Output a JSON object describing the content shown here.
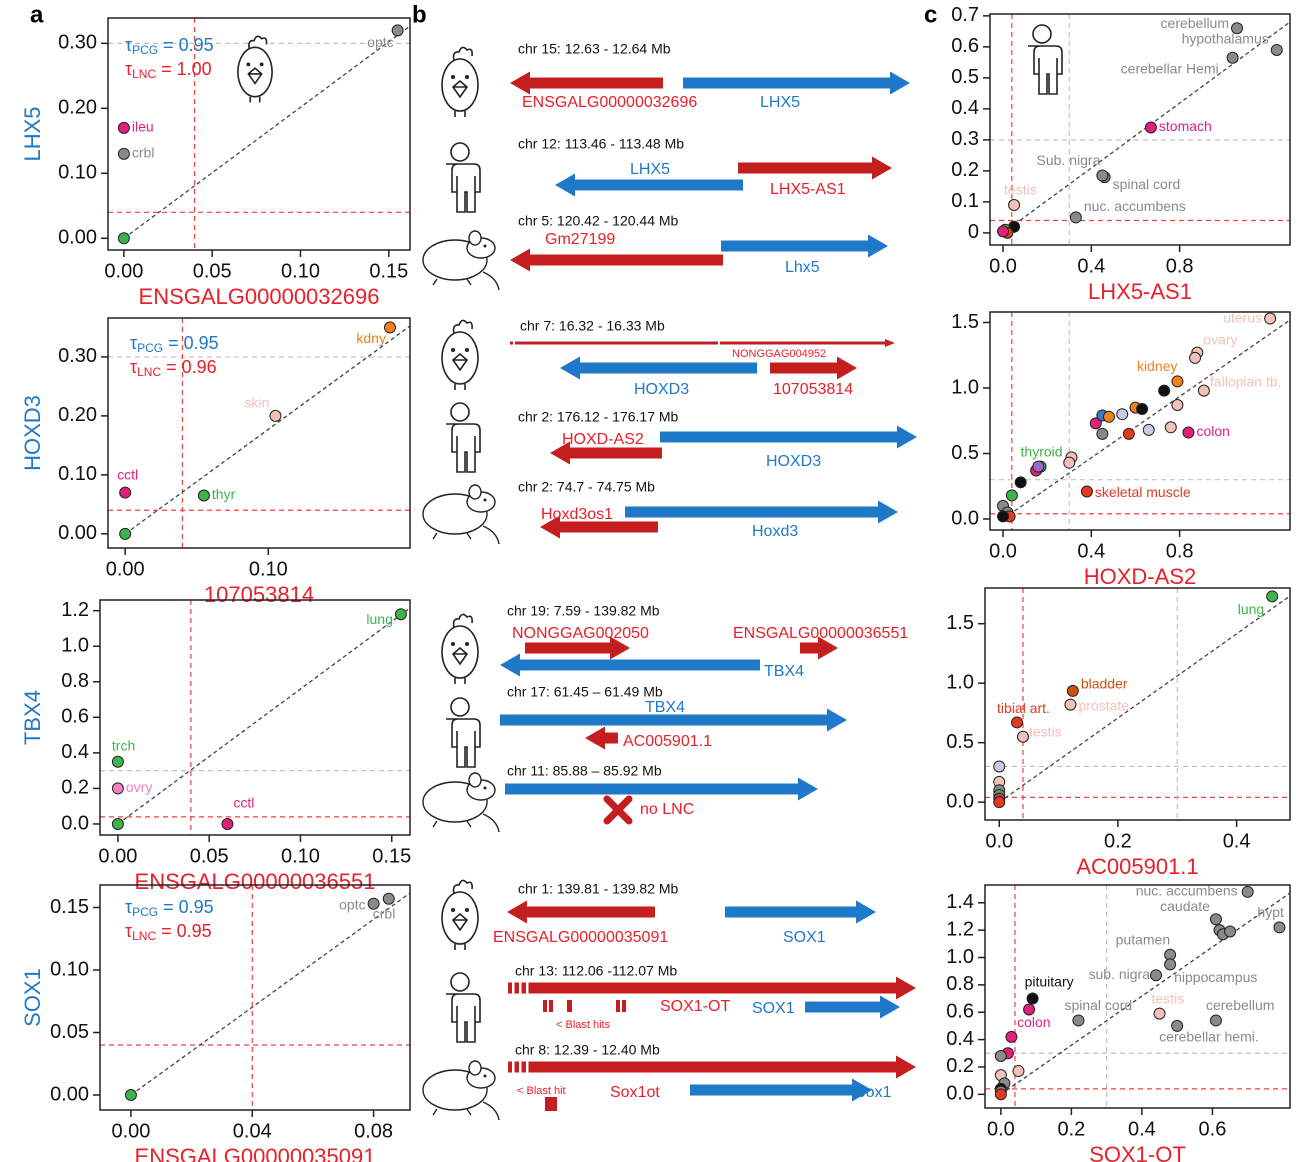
{
  "panel_labels": [
    "a",
    "b",
    "c"
  ],
  "chart_data": [
    {
      "type": "scatter",
      "ylabel": "LHX5",
      "ylabel_color": "#1f78c8",
      "xlabel": "ENSGALG00000032696",
      "xlabel_color": "#e8202a",
      "tau": [
        {
          "symbol": "τ",
          "sub": "PCG",
          "text": " = 0.95",
          "color": "#1f78c8"
        },
        {
          "symbol": "τ",
          "sub": "LNC",
          "text": " = 1.00",
          "color": "#e8202a"
        }
      ],
      "x": [
        0,
        0,
        0,
        0.155
      ],
      "values": [
        0,
        0.17,
        0.13,
        0.32
      ],
      "colors": [
        "#3cb44b",
        "#e0207a",
        "#8a8a8a",
        "#8a8a8a"
      ],
      "point_labels": [
        null,
        "ileu",
        "crbl",
        "optc"
      ],
      "xlim": [
        -0.009,
        0.162
      ],
      "ylim": [
        -0.018,
        0.339
      ],
      "xticks": [
        {
          "value": 0,
          "label": "0.00"
        },
        0.05,
        {
          "value": 0.1,
          "label": "0.10"
        },
        0.15
      ],
      "yticks": [
        {
          "value": 0,
          "label": "0.00"
        },
        {
          "value": 0.1,
          "label": "0.10"
        },
        {
          "value": 0.2,
          "label": "0.20"
        },
        {
          "value": 0.3,
          "label": "0.30"
        }
      ],
      "hlines": [
        {
          "value": 0.04,
          "color": "#f04040"
        },
        {
          "value": 0.3,
          "color": "#c0c0c0"
        }
      ],
      "vlines": [
        {
          "value": 0.04,
          "color": "#f04040"
        }
      ]
    },
    {
      "type": "scatter",
      "ylabel": "HOXD3",
      "ylabel_color": "#1f78c8",
      "xlabel": "107053814",
      "xlabel_color": "#e8202a",
      "tau": [
        {
          "symbol": "τ",
          "sub": "PCG",
          "text": " = 0.95",
          "color": "#1f78c8"
        },
        {
          "symbol": "τ",
          "sub": "LNC",
          "text": " = 0.96",
          "color": "#e8202a"
        }
      ],
      "x": [
        0,
        0,
        0.055,
        0.105,
        0.185
      ],
      "values": [
        0,
        0.07,
        0.065,
        0.2,
        0.35
      ],
      "colors": [
        "#3cb44b",
        "#e0207a",
        "#3cb44b",
        "#f4c0b8",
        "#f08020"
      ],
      "point_labels": [
        null,
        "cctl",
        "thyr",
        "skin",
        "kdny"
      ],
      "xlim": [
        -0.012,
        0.199
      ],
      "ylim": [
        -0.024,
        0.366
      ],
      "xticks": [
        {
          "value": 0,
          "label": "0.00"
        },
        {
          "value": 0.1,
          "label": "0.10"
        }
      ],
      "yticks": [
        {
          "value": 0,
          "label": "0.00"
        },
        {
          "value": 0.1,
          "label": "0.10"
        },
        {
          "value": 0.2,
          "label": "0.20"
        },
        {
          "value": 0.3,
          "label": "0.30"
        }
      ],
      "hlines": [
        {
          "value": 0.04,
          "color": "#f04040"
        },
        {
          "value": 0.3,
          "color": "#c0c0c0"
        }
      ],
      "vlines": [
        {
          "value": 0.04,
          "color": "#f04040"
        }
      ]
    },
    {
      "type": "scatter",
      "ylabel": "TBX4",
      "ylabel_color": "#1f78c8",
      "xlabel": "ENSGALG00000036551",
      "xlabel_color": "#e8202a",
      "x": [
        0,
        0,
        0,
        0.06,
        0.155
      ],
      "values": [
        0,
        0.35,
        0.2,
        0,
        1.18
      ],
      "colors": [
        "#3cb44b",
        "#3cb44b",
        "#f080c0",
        "#e0207a",
        "#3cb44b"
      ],
      "point_labels": [
        null,
        "trch",
        "ovry",
        "cctl",
        "lung"
      ],
      "xlim": [
        -0.0098,
        0.16
      ],
      "ylim": [
        -0.062,
        1.26
      ],
      "xticks": [
        {
          "value": 0,
          "label": "0.00"
        },
        0.05,
        {
          "value": 0.1,
          "label": "0.10"
        },
        0.15
      ],
      "yticks": [
        {
          "value": 0,
          "label": "0.0"
        },
        0.2,
        0.4,
        0.6,
        0.8,
        {
          "value": 1,
          "label": "1.0"
        },
        1.2
      ],
      "hlines": [
        {
          "value": 0.04,
          "color": "#f04040"
        },
        {
          "value": 0.3,
          "color": "#c0c0c0"
        }
      ],
      "vlines": [
        {
          "value": 0.04,
          "color": "#f04040"
        }
      ]
    },
    {
      "type": "scatter",
      "ylabel": "SOX1",
      "ylabel_color": "#1f78c8",
      "xlabel": "ENSGALG00000035091",
      "xlabel_color": "#e8202a",
      "tau": [
        {
          "symbol": "τ",
          "sub": "PCG",
          "text": " = 0.95",
          "color": "#1f78c8"
        },
        {
          "symbol": "τ",
          "sub": "LNC",
          "text": " = 0.95",
          "color": "#e8202a"
        }
      ],
      "x": [
        0,
        0.08,
        0.085
      ],
      "values": [
        0,
        0.153,
        0.157
      ],
      "colors": [
        "#3cb44b",
        "#8a8a8a",
        "#8a8a8a"
      ],
      "point_labels": [
        null,
        "optc",
        "crbl"
      ],
      "xlim": [
        -0.0102,
        0.092
      ],
      "ylim": [
        -0.012,
        0.168
      ],
      "xticks": [
        {
          "value": 0,
          "label": "0.00"
        },
        0.04,
        0.08
      ],
      "yticks": [
        {
          "value": 0,
          "label": "0.00"
        },
        0.05,
        {
          "value": 0.1,
          "label": "0.10"
        },
        0.15
      ],
      "hlines": [
        {
          "value": 0.04,
          "color": "#f04040"
        }
      ],
      "vlines": [
        {
          "value": 0.04,
          "color": "#f04040"
        }
      ]
    },
    {
      "type": "scatter",
      "xlabel": "LHX5-AS1",
      "xlabel_color": "#e8202a",
      "x": [
        1.06,
        1.24,
        1.04,
        0.67,
        0.46,
        0.45,
        0.33,
        0.05,
        0.05,
        0.01,
        0.02,
        0.0
      ],
      "values": [
        0.66,
        0.59,
        0.565,
        0.34,
        0.18,
        0.185,
        0.05,
        0.09,
        0.02,
        0.01,
        0.0,
        0.005
      ],
      "colors": [
        "#8a8a8a",
        "#8a8a8a",
        "#8a8a8a",
        "#e0207a",
        "#8a8a8a",
        "#8a8a8a",
        "#8a8a8a",
        "#f4c0b8",
        "#111111",
        "#3cb44b",
        "#e03a20",
        "#e0207a"
      ],
      "point_labels": [
        "cerebellum",
        "hypothalamus",
        "cerebellar Hemi.",
        "stomach",
        "spinal cord",
        "Sub. nigra",
        "nuc. accumbens",
        "testis",
        null,
        null,
        null,
        null
      ],
      "xlim": [
        -0.059,
        1.3
      ],
      "ylim": [
        -0.039,
        0.706
      ],
      "xticks": [
        {
          "value": 0,
          "label": "0.0"
        },
        0.4,
        0.8
      ],
      "yticks": [
        0,
        0.1,
        0.2,
        0.3,
        0.4,
        0.5,
        0.6,
        0.7
      ],
      "hlines": [
        {
          "value": 0.04,
          "color": "#f04040"
        },
        {
          "value": 0.3,
          "color": "#c0c0c0"
        }
      ],
      "vlines": [
        {
          "value": 0.04,
          "color": "#f04040"
        },
        {
          "value": 0.3,
          "color": "#c0c0c0"
        }
      ]
    },
    {
      "type": "scatter",
      "xlabel": "HOXD-AS2",
      "xlabel_color": "#e8202a",
      "x": [
        1.21,
        0.88,
        0.87,
        0.91,
        0.79,
        0.73,
        0.84,
        0.17,
        0.38,
        0.42,
        0.45,
        0.48,
        0.54,
        0.6,
        0.63,
        0.57,
        0.66,
        0.76,
        0.79,
        0.45,
        0.31,
        0.3,
        0.15,
        0.16,
        0.08,
        0.04,
        0.0,
        0.02,
        0.03,
        0.0
      ],
      "values": [
        1.53,
        1.27,
        1.23,
        0.98,
        1.05,
        0.98,
        0.66,
        0.4,
        0.21,
        0.73,
        0.79,
        0.78,
        0.8,
        0.85,
        0.84,
        0.65,
        0.68,
        0.7,
        0.87,
        0.65,
        0.47,
        0.43,
        0.37,
        0.4,
        0.28,
        0.18,
        0.1,
        0.05,
        0.02,
        0.02
      ],
      "colors": [
        "#f4c0b8",
        "#f4c0b8",
        "#f4c0b8",
        "#f4c0b8",
        "#f08020",
        "#111111",
        "#e0207a",
        "#3cb44b",
        "#e03a20",
        "#e0207a",
        "#3c78c8",
        "#f08020",
        "#c8c8e8",
        "#f08020",
        "#111111",
        "#e03a20",
        "#c8c8e8",
        "#f4c0b8",
        "#f4c0b8",
        "#8a8a8a",
        "#f4c0b8",
        "#f4c0b8",
        "#e0207a",
        "#9a6ad0",
        "#111111",
        "#3cb44b",
        "#8a8a8a",
        "#8a8a8a",
        "#e03a20",
        "#111111"
      ],
      "point_labels": [
        "uterus",
        "ovary",
        null,
        "fallopian tb.",
        "kidney",
        null,
        "colon",
        "thyroid",
        "skeletal muscle",
        null,
        null,
        null,
        null,
        null,
        null,
        null,
        null,
        null,
        null,
        null,
        null,
        null,
        null,
        null,
        null,
        null,
        null,
        null,
        null,
        null
      ],
      "xlim": [
        -0.059,
        1.3
      ],
      "ylim": [
        -0.084,
        1.58
      ],
      "xticks": [
        {
          "value": 0,
          "label": "0.0"
        },
        0.4,
        0.8
      ],
      "yticks": [
        {
          "value": 0,
          "label": "0.0"
        },
        0.5,
        {
          "value": 1,
          "label": "1.0"
        },
        1.5
      ],
      "hlines": [
        {
          "value": 0.04,
          "color": "#f04040"
        },
        {
          "value": 0.3,
          "color": "#c0c0c0"
        }
      ],
      "vlines": [
        {
          "value": 0.04,
          "color": "#f04040"
        },
        {
          "value": 0.3,
          "color": "#c0c0c0"
        }
      ]
    },
    {
      "type": "scatter",
      "xlabel": "AC005901.1",
      "xlabel_color": "#e8202a",
      "x": [
        0.46,
        0.124,
        0.12,
        0.03,
        0.04,
        0.0,
        0.0,
        0.0,
        0.0,
        0.0,
        0.0
      ],
      "values": [
        1.73,
        0.935,
        0.82,
        0.67,
        0.55,
        0.3,
        0.17,
        0.1,
        0.06,
        0.03,
        0.0
      ],
      "colors": [
        "#3cb44b",
        "#d05010",
        "#f4c0b8",
        "#e03a20",
        "#f4c0b8",
        "#c8c8e8",
        "#f4c0b8",
        "#8a8a8a",
        "#3cb44b",
        "#e0207a",
        "#e03a20"
      ],
      "point_labels": [
        "lung",
        "bladder",
        "prostate",
        "tibial art.",
        "testis",
        null,
        null,
        null,
        null,
        null,
        null
      ],
      "xlim": [
        -0.024,
        0.49
      ],
      "ylim": [
        -0.15,
        1.8
      ],
      "xticks": [
        {
          "value": 0,
          "label": "0.0"
        },
        0.2,
        0.4
      ],
      "yticks": [
        {
          "value": 0,
          "label": "0.0"
        },
        0.5,
        {
          "value": 1,
          "label": "1.0"
        },
        1.5
      ],
      "hlines": [
        {
          "value": 0.04,
          "color": "#f04040"
        },
        {
          "value": 0.3,
          "color": "#c0c0c0"
        }
      ],
      "vlines": [
        {
          "value": 0.04,
          "color": "#f04040"
        },
        {
          "value": 0.3,
          "color": "#c0c0c0"
        }
      ]
    },
    {
      "type": "scatter",
      "xlabel": "SOX1-OT",
      "xlabel_color": "#e8202a",
      "x": [
        0.7,
        0.79,
        0.61,
        0.62,
        0.63,
        0.65,
        0.48,
        0.44,
        0.48,
        0.09,
        0.08,
        0.22,
        0.45,
        0.61,
        0.5,
        0.03,
        0.02,
        0.0,
        0.05,
        0.0,
        0.01,
        0.0,
        0.0,
        0.0
      ],
      "values": [
        1.48,
        1.22,
        1.28,
        1.2,
        1.17,
        1.19,
        1.02,
        0.87,
        0.95,
        0.7,
        0.62,
        0.54,
        0.59,
        0.54,
        0.5,
        0.42,
        0.3,
        0.28,
        0.17,
        0.14,
        0.08,
        0.04,
        0.02,
        0.0
      ],
      "colors": [
        "#8a8a8a",
        "#8a8a8a",
        "#8a8a8a",
        "#8a8a8a",
        "#8a8a8a",
        "#8a8a8a",
        "#8a8a8a",
        "#8a8a8a",
        "#8a8a8a",
        "#111111",
        "#e0207a",
        "#8a8a8a",
        "#f4c0b8",
        "#8a8a8a",
        "#8a8a8a",
        "#e0207a",
        "#e0207a",
        "#8a8a8a",
        "#f4c0b8",
        "#f4c0b8",
        "#8a8a8a",
        "#111111",
        "#8a8a8a",
        "#e03a20"
      ],
      "point_labels": [
        "nuc. accumbens",
        "hypt",
        "caudate",
        null,
        null,
        null,
        "putamen",
        "sub. nigra",
        "hippocampus",
        "pituitary",
        "colon",
        "spinal cord",
        "testis",
        "cerebellum",
        "cerebellar hemi.",
        null,
        null,
        null,
        null,
        null,
        null,
        null,
        null,
        null
      ],
      "xlim": [
        -0.045,
        0.82
      ],
      "ylim": [
        -0.1,
        1.53
      ],
      "xticks": [
        {
          "value": 0,
          "label": "0.0"
        },
        0.2,
        0.4,
        0.6
      ],
      "yticks": [
        {
          "value": 0,
          "label": "0.0"
        },
        0.2,
        0.4,
        0.6,
        0.8,
        {
          "value": 1,
          "label": "1.0"
        },
        1.2,
        1.4
      ],
      "hlines": [
        {
          "value": 0.04,
          "color": "#f04040"
        },
        {
          "value": 0.3,
          "color": "#c0c0c0"
        }
      ],
      "vlines": [
        {
          "value": 0.04,
          "color": "#f04040"
        },
        {
          "value": 0.3,
          "color": "#c0c0c0"
        }
      ]
    }
  ],
  "gene_maps": [
    [
      {
        "coords": "chr 15: 12.63 - 12.64 Mb",
        "labels": [
          "ENSGALG00000032696",
          "LHX5"
        ]
      },
      {
        "coords": "chr 12: 113.46 - 113.48 Mb",
        "labels": [
          "LHX5",
          "LHX5-AS1"
        ]
      },
      {
        "coords": "chr 5: 120.42 - 120.44 Mb",
        "labels": [
          "Gm27199",
          "Lhx5"
        ]
      }
    ],
    [
      {
        "coords": "chr 7: 16.32 - 16.33 Mb",
        "labels": [
          "NONGGAG004952",
          "HOXD3",
          "107053814"
        ]
      },
      {
        "coords": "chr 2: 176.12 - 176.17 Mb",
        "labels": [
          "HOXD-AS2",
          "HOXD3"
        ]
      },
      {
        "coords": "chr 2: 74.7 - 74.75 Mb",
        "labels": [
          "Hoxd3os1",
          "Hoxd3"
        ]
      }
    ],
    [
      {
        "coords": "chr 19: 7.59 - 139.82 Mb",
        "labels": [
          "NONGGAG002050",
          "ENSGALG00000036551",
          "TBX4"
        ]
      },
      {
        "coords": "chr 17: 61.45 – 61.49 Mb",
        "labels": [
          "TBX4",
          "AC005901.1"
        ]
      },
      {
        "coords": "chr 11: 85.88 – 85.92 Mb",
        "labels": [
          "no LNC"
        ]
      }
    ],
    [
      {
        "coords": "chr 1: 139.81 - 139.82 Mb",
        "labels": [
          "ENSGALG00000035091",
          "SOX1"
        ]
      },
      {
        "coords": "chr 13: 112.06 -112.07 Mb",
        "labels": [
          "SOX1-OT",
          "SOX1",
          "< Blast hits"
        ]
      },
      {
        "coords": "chr 8: 12.39 - 12.40 Mb",
        "labels": [
          "Sox1ot",
          "Sox1",
          "< Blast hit"
        ]
      }
    ]
  ]
}
